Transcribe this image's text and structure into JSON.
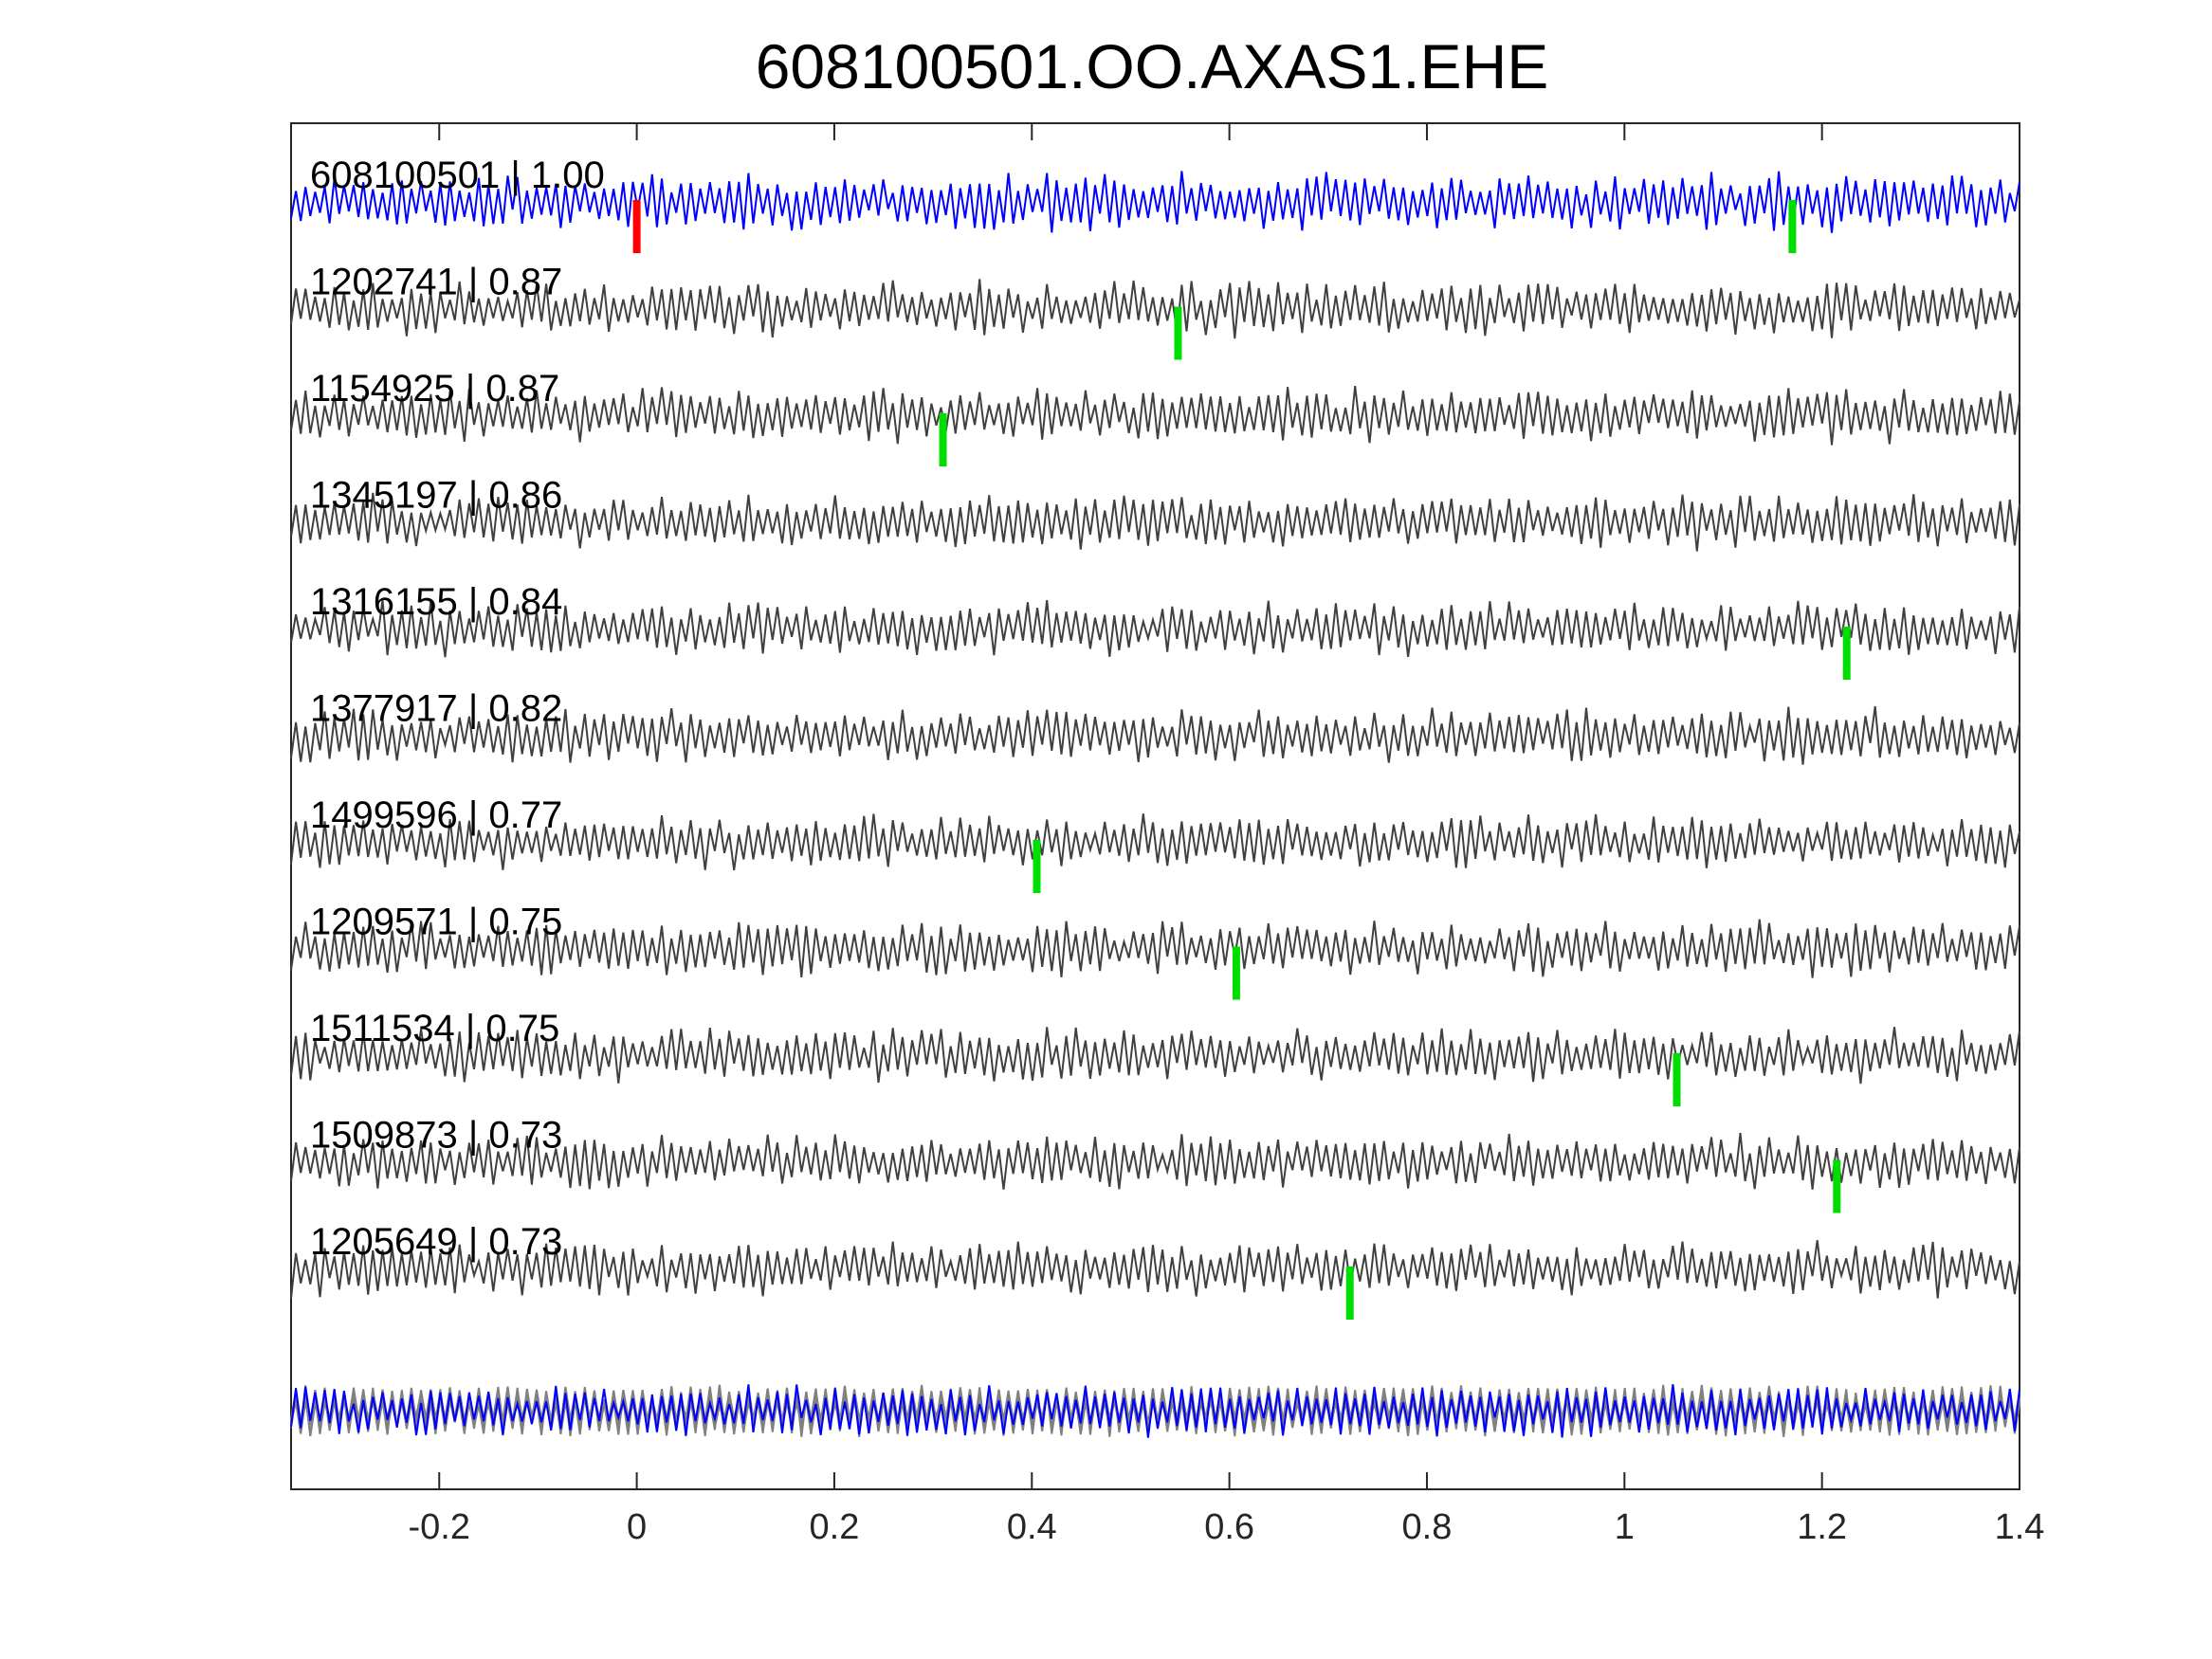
{
  "chart_data": {
    "type": "line",
    "title": "608100501.OO.AXAS1.EHE",
    "xlabel": "",
    "ylabel": "",
    "xlim": [
      -0.35,
      1.4
    ],
    "xticks": [
      -0.2,
      0,
      0.2,
      0.4,
      0.6,
      0.8,
      1,
      1.2,
      1.4
    ],
    "xtick_labels": [
      "-0.2",
      "0",
      "0.2",
      "0.4",
      "0.6",
      "0.8",
      "1",
      "1.2",
      "1.4"
    ],
    "grid": false,
    "legend": "none",
    "colors": {
      "reference": "#0000ff",
      "traces": "#404040",
      "overlay": "#808080",
      "reference_pick": "#ff0000",
      "pick": "#00dd00",
      "axes": "#262626"
    },
    "series": [
      {
        "label": "608100501 | 1.00",
        "id": "608100501",
        "correlation": 1.0,
        "reference": true,
        "reference_pick": 0.0,
        "pick": 1.17
      },
      {
        "label": "1202741 | 0.87",
        "id": "1202741",
        "correlation": 0.87,
        "pick": 0.548
      },
      {
        "label": "1154925 | 0.87",
        "id": "1154925",
        "correlation": 0.87,
        "pick": 0.31
      },
      {
        "label": "1345197 | 0.86",
        "id": "1345197",
        "correlation": 0.86,
        "pick": null
      },
      {
        "label": "1316155 | 0.84",
        "id": "1316155",
        "correlation": 0.84,
        "pick": 1.225
      },
      {
        "label": "1377917 | 0.82",
        "id": "1377917",
        "correlation": 0.82,
        "pick": null
      },
      {
        "label": "1499596 | 0.77",
        "id": "1499596",
        "correlation": 0.77,
        "pick": 0.405
      },
      {
        "label": "1209571 | 0.75",
        "id": "1209571",
        "correlation": 0.75,
        "pick": 0.607
      },
      {
        "label": "1511534 | 0.75",
        "id": "1511534",
        "correlation": 0.75,
        "pick": 1.053
      },
      {
        "label": "1509873 | 0.73",
        "id": "1509873",
        "correlation": 0.73,
        "pick": 1.215
      },
      {
        "label": "1205649 | 0.73",
        "id": "1205649",
        "correlation": 0.73,
        "pick": 0.722
      }
    ]
  }
}
